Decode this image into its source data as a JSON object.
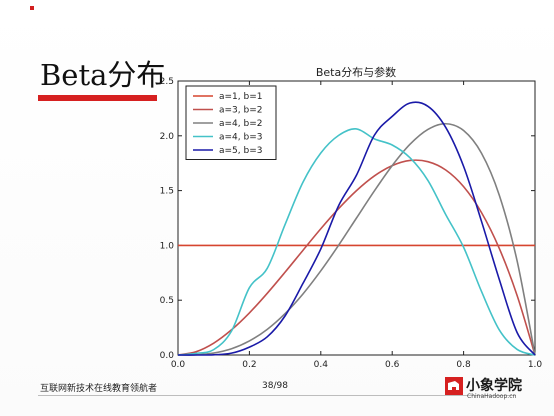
{
  "slide": {
    "title": "Beta分布",
    "footer_text": "互联网新技术在线教育领航者",
    "page_number": "38/98",
    "logo_name": "小象学院",
    "logo_url": "ChinaHadoop.cn",
    "accent_color": "#d62020"
  },
  "chart_data": {
    "type": "line",
    "title": "Beta分布与参数",
    "xlabel": "",
    "ylabel": "",
    "xlim": [
      0,
      1
    ],
    "ylim": [
      0,
      2.5
    ],
    "xticks": [
      "0.0",
      "0.2",
      "0.4",
      "0.6",
      "0.8",
      "1.0"
    ],
    "yticks": [
      "0.0",
      "0.5",
      "1.0",
      "1.5",
      "2.0",
      "2.5"
    ],
    "legend_position": "top-left",
    "grid": false,
    "x": [
      0.0,
      0.05,
      0.1,
      0.15,
      0.2,
      0.25,
      0.3,
      0.35,
      0.4,
      0.45,
      0.5,
      0.55,
      0.6,
      0.65,
      0.7,
      0.75,
      0.8,
      0.85,
      0.9,
      0.95,
      1.0
    ],
    "series": [
      {
        "name": "a=1, b=1",
        "color": "#d6452f",
        "values": [
          1.0,
          1.0,
          1.0,
          1.0,
          1.0,
          1.0,
          1.0,
          1.0,
          1.0,
          1.0,
          1.0,
          1.0,
          1.0,
          1.0,
          1.0,
          1.0,
          1.0,
          1.0,
          1.0,
          1.0,
          1.0
        ]
      },
      {
        "name": "a=3, b=2",
        "color": "#c0504d",
        "values": [
          0.0,
          0.029,
          0.108,
          0.23,
          0.384,
          0.563,
          0.756,
          0.955,
          1.152,
          1.336,
          1.5,
          1.634,
          1.728,
          1.775,
          1.764,
          1.688,
          1.536,
          1.3,
          0.972,
          0.542,
          0.0
        ]
      },
      {
        "name": "a=4, b=2",
        "color": "#808080",
        "values": [
          0.0,
          0.002,
          0.018,
          0.057,
          0.128,
          0.234,
          0.378,
          0.557,
          0.768,
          1.002,
          1.25,
          1.497,
          1.728,
          1.923,
          2.058,
          2.11,
          2.048,
          1.842,
          1.458,
          0.857,
          0.0
        ]
      },
      {
        "name": "a=4, b=3",
        "color": "#44c2c8",
        "values": [
          0.0,
          0.015,
          0.049,
          0.219,
          0.614,
          0.791,
          1.191,
          1.576,
          1.843,
          2.004,
          2.063,
          1.972,
          1.916,
          1.799,
          1.593,
          1.281,
          0.983,
          0.581,
          0.229,
          0.051,
          0.0
        ]
      },
      {
        "name": "a=5, b=3",
        "color": "#1a1aa8",
        "values": [
          0.0,
          0.0,
          0.002,
          0.017,
          0.072,
          0.166,
          0.357,
          0.653,
          0.968,
          1.363,
          1.641,
          2.005,
          2.177,
          2.299,
          2.269,
          2.076,
          1.721,
          1.221,
          0.689,
          0.204,
          0.0
        ]
      }
    ]
  }
}
